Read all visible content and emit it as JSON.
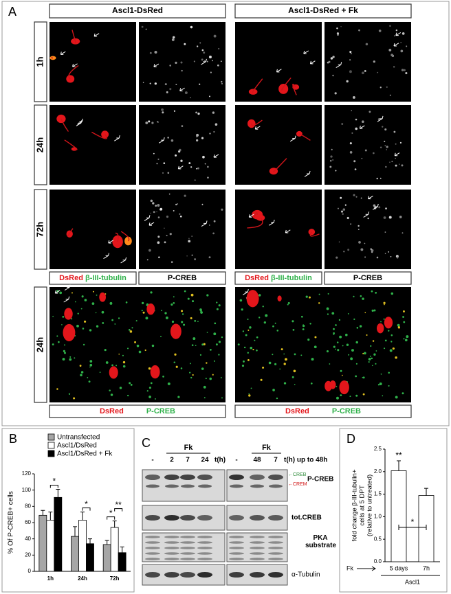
{
  "panel_a": {
    "label": "A",
    "groups": [
      "Ascl1-DsRed",
      "Ascl1-DsRed + Fk"
    ],
    "times": [
      "1h",
      "24h",
      "72h"
    ],
    "bottom_time": "24h",
    "channels": {
      "red": "DsRed",
      "green": "β-III-tubulin",
      "gray": "P-CREB",
      "bottom_red": "DsRed",
      "bottom_green": "P-CREB"
    }
  },
  "panel_c": {
    "label": "C",
    "treatment": [
      "Fk",
      "Fk"
    ],
    "lanes_left": [
      "-",
      "2",
      "7",
      "24"
    ],
    "unit_left": "t(h)",
    "lanes_right": [
      "-",
      "48",
      "7"
    ],
    "unit_right": "t(h) up to 48h",
    "band_markers": [
      "←CREB",
      "←CREM"
    ],
    "rows": [
      "P-CREB",
      "tot.CREB",
      "PKA substrate",
      "α-Tubulin"
    ]
  },
  "chart_data": [
    {
      "type": "bar",
      "label": "B",
      "ylabel": "% Of P-CREB+ cells",
      "categories": [
        "1h",
        "24h",
        "72h"
      ],
      "series": [
        {
          "name": "Untransfected",
          "color": "#a6a6a6",
          "values": [
            69,
            43,
            33
          ],
          "errors": [
            6,
            12,
            5
          ]
        },
        {
          "name": "Ascl1/DsRed",
          "color": "#ffffff",
          "values": [
            63,
            63,
            54
          ],
          "errors": [
            10,
            10,
            8
          ]
        },
        {
          "name": "Ascl1/DsRed + Fk",
          "color": "#000000",
          "values": [
            91,
            34,
            23
          ],
          "errors": [
            10,
            6,
            7
          ]
        }
      ],
      "ylim": [
        0,
        120
      ],
      "yticks": [
        0,
        20,
        40,
        60,
        80,
        100,
        120
      ],
      "annotations": [
        "*",
        "*",
        "*",
        "**"
      ],
      "legend": "upper right"
    },
    {
      "type": "bar",
      "label": "D",
      "ylabel": [
        "fold change β-III-tubulin+",
        "cells at 5 DPT",
        "(relative to untreated)"
      ],
      "categories": [
        "5 days",
        "7h"
      ],
      "values": [
        2.02,
        1.47
      ],
      "errors": [
        0.22,
        0.16
      ],
      "color": "#ffffff",
      "ylim": [
        0,
        2.5
      ],
      "yticks": [
        {
          "value": 0,
          "label": "0.0"
        },
        0.5,
        {
          "value": 1,
          "label": "1.0"
        },
        1.5,
        {
          "value": 2,
          "label": "2.0"
        },
        2.5
      ],
      "annotations": [
        "**",
        "*"
      ],
      "x_prefix": "Fk",
      "group_label": "Ascl1"
    }
  ]
}
